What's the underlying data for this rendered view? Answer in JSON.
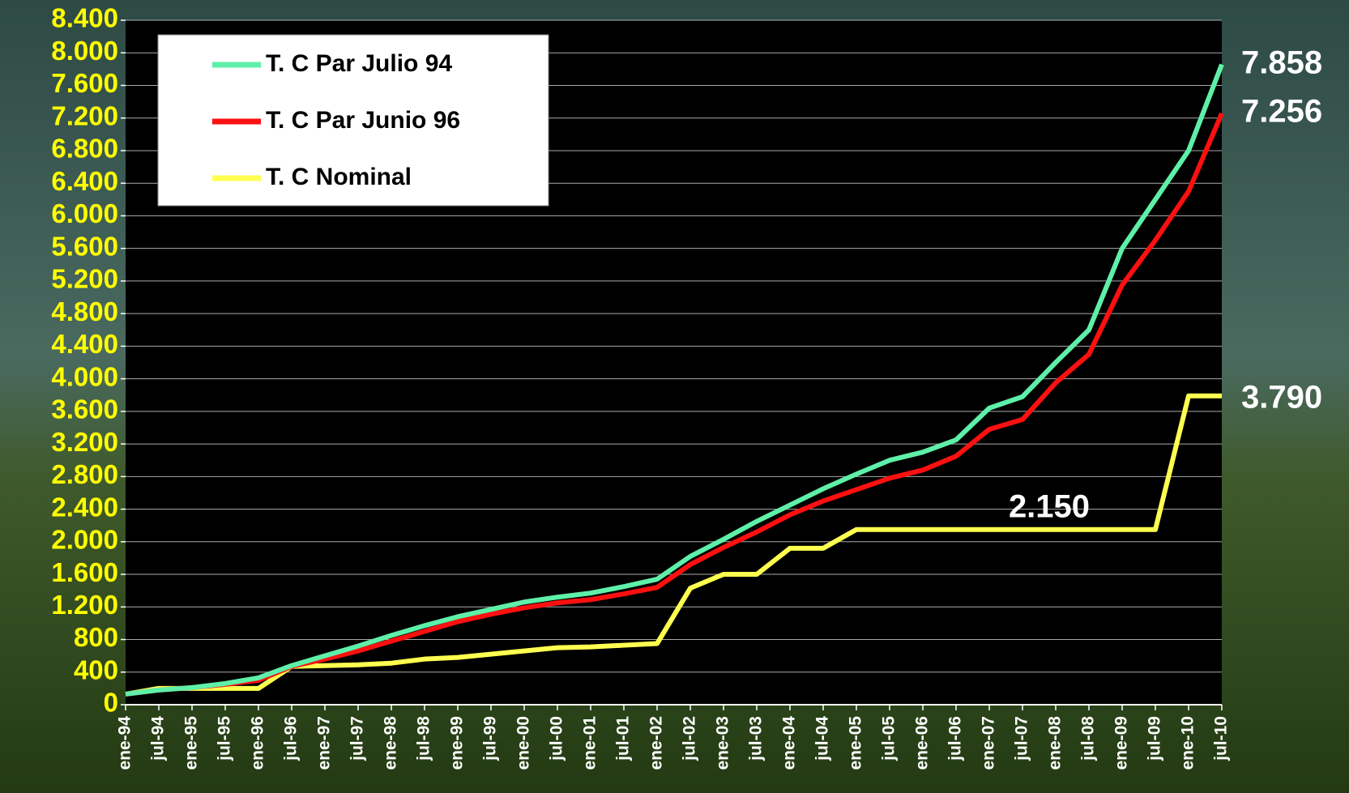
{
  "chart_data": {
    "type": "line",
    "categories": [
      "ene-94",
      "jul-94",
      "ene-95",
      "jul-95",
      "ene-96",
      "jul-96",
      "ene-97",
      "jul-97",
      "ene-98",
      "jul-98",
      "ene-99",
      "jul-99",
      "ene-00",
      "jul-00",
      "ene-01",
      "jul-01",
      "ene-02",
      "jul-02",
      "ene-03",
      "jul-03",
      "ene-04",
      "jul-04",
      "ene-05",
      "jul-05",
      "ene-06",
      "jul-06",
      "ene-07",
      "jul-07",
      "ene-08",
      "jul-08",
      "ene-09",
      "jul-09",
      "ene-10",
      "jul-10"
    ],
    "series": [
      {
        "name": "T. C Par Julio 94",
        "color": "#5ef0a8",
        "values": [
          130,
          180,
          210,
          260,
          330,
          480,
          600,
          720,
          850,
          970,
          1080,
          1170,
          1260,
          1320,
          1370,
          1450,
          1540,
          1820,
          2030,
          2250,
          2450,
          2650,
          2830,
          3000,
          3100,
          3250,
          3640,
          3780,
          4200,
          4600,
          5600,
          6200,
          6800,
          7858
        ]
      },
      {
        "name": "T. C Par Junio 96",
        "color": "#ff1010",
        "values": [
          130,
          180,
          210,
          250,
          300,
          470,
          560,
          660,
          780,
          900,
          1020,
          1110,
          1190,
          1250,
          1290,
          1360,
          1440,
          1720,
          1930,
          2120,
          2330,
          2500,
          2640,
          2780,
          2880,
          3050,
          3380,
          3500,
          3950,
          4300,
          5150,
          5700,
          6300,
          7256
        ]
      },
      {
        "name": "T. C Nominal",
        "color": "#ffff50",
        "values": [
          130,
          200,
          200,
          200,
          200,
          470,
          480,
          490,
          510,
          560,
          580,
          620,
          660,
          700,
          710,
          730,
          750,
          1430,
          1600,
          1600,
          1920,
          1920,
          2150,
          2150,
          2150,
          2150,
          2150,
          2150,
          2150,
          2150,
          2150,
          2150,
          3790,
          3790
        ]
      }
    ],
    "annotations": [
      "7.858",
      "7.256",
      "3.790",
      "2.150"
    ],
    "ylim": [
      0,
      8400
    ],
    "yticks": [
      0,
      {
        "value": 400,
        "label": "400"
      },
      {
        "value": 800,
        "label": "800"
      },
      {
        "value": 1200,
        "label": "1.200"
      },
      {
        "value": 1600,
        "label": "1.600"
      },
      {
        "value": 2000,
        "label": "2.000"
      },
      {
        "value": 2400,
        "label": "2.400"
      },
      {
        "value": 2800,
        "label": "2.800"
      },
      {
        "value": 3200,
        "label": "3.200"
      },
      {
        "value": 3600,
        "label": "3.600"
      },
      {
        "value": 4000,
        "label": "4.000"
      },
      {
        "value": 4400,
        "label": "4.400"
      },
      {
        "value": 4800,
        "label": "4.800"
      },
      {
        "value": 5200,
        "label": "5.200"
      },
      {
        "value": 5600,
        "label": "5.600"
      },
      {
        "value": 6000,
        "label": "6.000"
      },
      {
        "value": 6400,
        "label": "6.400"
      },
      {
        "value": 6800,
        "label": "6.800"
      },
      {
        "value": 7200,
        "label": "7.200"
      },
      {
        "value": 7600,
        "label": "7.600"
      },
      {
        "value": 8000,
        "label": "8.000"
      },
      {
        "value": 8400,
        "label": "8.400"
      }
    ],
    "grid": true,
    "legend": "top-left"
  }
}
